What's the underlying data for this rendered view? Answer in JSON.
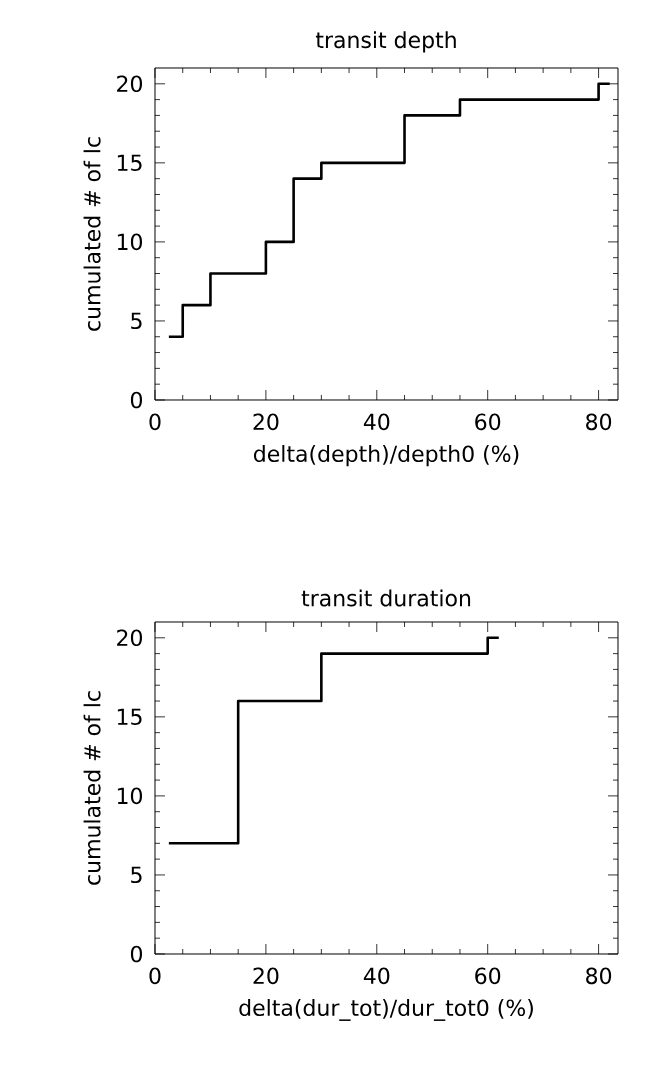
{
  "chart_data": [
    {
      "type": "step",
      "title": "transit depth",
      "xlabel": "delta(depth)/depth0 (%)",
      "ylabel": "cumulated # of lc",
      "xlim": [
        0,
        83.5
      ],
      "ylim": [
        0,
        21
      ],
      "xticks": [
        0,
        20,
        40,
        60,
        80
      ],
      "yticks": [
        0,
        5,
        10,
        15,
        20
      ],
      "series": [
        {
          "color": "#000000",
          "x": [
            2.5,
            5,
            10,
            20,
            25,
            30,
            45,
            55,
            80,
            82
          ],
          "values": [
            4,
            6,
            8,
            10,
            14,
            15,
            18,
            19,
            20,
            20
          ]
        }
      ]
    },
    {
      "type": "step",
      "title": "transit duration",
      "xlabel": "delta(dur_tot)/dur_tot0 (%)",
      "ylabel": "cumulated # of lc",
      "xlim": [
        0,
        83.5
      ],
      "ylim": [
        0,
        21
      ],
      "xticks": [
        0,
        20,
        40,
        60,
        80
      ],
      "yticks": [
        0,
        5,
        10,
        15,
        20
      ],
      "series": [
        {
          "color": "#000000",
          "x": [
            2.5,
            15,
            30,
            60,
            62
          ],
          "values": [
            7,
            16,
            19,
            20,
            20
          ]
        }
      ]
    }
  ]
}
